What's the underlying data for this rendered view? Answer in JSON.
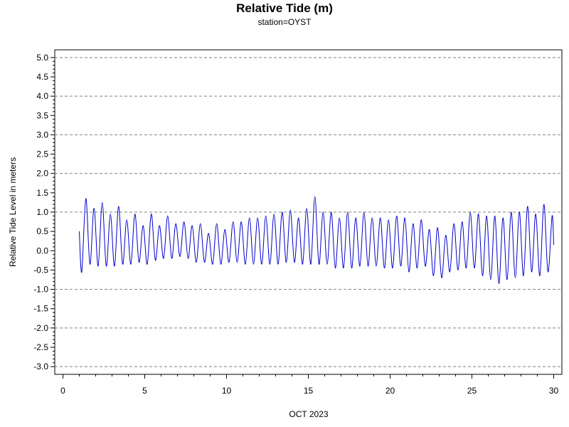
{
  "chart_data": {
    "type": "line",
    "title": "Relative Tide (m)",
    "subtitle": "station=OYST",
    "xlabel": "OCT 2023",
    "ylabel": "Relative Tide Level in meters",
    "xlim": [
      -0.5,
      30.5
    ],
    "ylim": [
      -3.2,
      5.2
    ],
    "x_ticks": [
      0,
      5,
      10,
      15,
      20,
      25,
      30
    ],
    "y_ticks": [
      5.0,
      4.5,
      4.0,
      3.5,
      3.0,
      2.5,
      2.0,
      1.5,
      1.0,
      0.5,
      0.0,
      -0.5,
      -1.0,
      -1.5,
      -2.0,
      -2.5,
      -3.0
    ],
    "y_grid": [
      5.0,
      4.0,
      3.0,
      2.0,
      1.0,
      -1.0,
      -2.0,
      -3.0
    ],
    "grid": true,
    "line_color": "#0000cc",
    "series": [
      {
        "x": [
          1.0,
          1.15,
          1.4,
          1.65,
          1.9,
          2.15,
          2.4,
          2.65,
          2.9,
          3.15,
          3.4,
          3.65,
          3.9,
          4.15,
          4.4,
          4.65,
          4.9,
          5.15,
          5.4,
          5.65,
          5.9,
          6.15,
          6.4,
          6.65,
          6.9,
          7.15,
          7.4,
          7.65,
          7.9,
          8.15,
          8.4,
          8.65,
          8.9,
          9.15,
          9.4,
          9.65,
          9.9,
          10.15,
          10.4,
          10.65,
          10.9,
          11.15,
          11.4,
          11.65,
          11.9,
          12.15,
          12.4,
          12.65,
          12.9,
          13.15,
          13.4,
          13.65,
          13.9,
          14.15,
          14.4,
          14.65,
          14.9,
          15.15,
          15.4,
          15.65,
          15.9,
          16.15,
          16.4,
          16.65,
          16.9,
          17.15,
          17.4,
          17.65,
          17.9,
          18.15,
          18.4,
          18.65,
          18.9,
          19.15,
          19.4,
          19.65,
          19.9,
          20.15,
          20.4,
          20.65,
          20.9,
          21.15,
          21.4,
          21.65,
          21.9,
          22.15,
          22.4,
          22.65,
          22.9,
          23.15,
          23.4,
          23.65,
          23.9,
          24.15,
          24.4,
          24.65,
          24.9,
          25.15,
          25.4,
          25.65,
          25.9,
          26.15,
          26.4,
          26.65,
          26.9,
          27.15,
          27.4,
          27.65,
          27.9,
          28.15,
          28.4,
          28.65,
          28.9,
          29.15,
          29.4,
          29.65,
          29.9,
          30.0
        ],
        "y": [
          0.5,
          -0.55,
          1.35,
          -0.35,
          1.1,
          -0.4,
          1.25,
          -0.4,
          0.95,
          -0.4,
          1.15,
          -0.35,
          0.8,
          -0.35,
          0.95,
          -0.3,
          0.65,
          -0.35,
          0.95,
          -0.25,
          0.65,
          -0.2,
          0.9,
          -0.2,
          0.7,
          -0.15,
          0.75,
          -0.2,
          0.65,
          -0.3,
          0.7,
          -0.3,
          0.45,
          -0.35,
          0.7,
          -0.35,
          0.55,
          -0.3,
          0.75,
          -0.3,
          0.75,
          -0.35,
          0.85,
          -0.35,
          0.85,
          -0.35,
          0.9,
          -0.35,
          0.95,
          -0.35,
          1.0,
          -0.3,
          1.05,
          -0.3,
          0.85,
          -0.35,
          1.1,
          -0.35,
          1.4,
          -0.35,
          1.0,
          -0.35,
          1.0,
          -0.45,
          0.85,
          -0.45,
          1.0,
          -0.45,
          0.85,
          -0.4,
          1.0,
          -0.4,
          0.85,
          -0.4,
          0.85,
          -0.45,
          0.8,
          -0.45,
          0.9,
          -0.4,
          0.85,
          -0.55,
          0.7,
          -0.45,
          0.8,
          -0.4,
          0.55,
          -0.65,
          0.6,
          -0.7,
          0.4,
          -0.55,
          0.7,
          -0.5,
          0.75,
          -0.45,
          1.0,
          -0.45,
          0.95,
          -0.65,
          0.9,
          -0.75,
          0.9,
          -0.85,
          0.85,
          -0.75,
          1.0,
          -0.7,
          1.0,
          -0.65,
          1.15,
          -0.55,
          0.95,
          -0.65,
          1.2,
          -0.55,
          0.9,
          0.15
        ]
      }
    ]
  }
}
